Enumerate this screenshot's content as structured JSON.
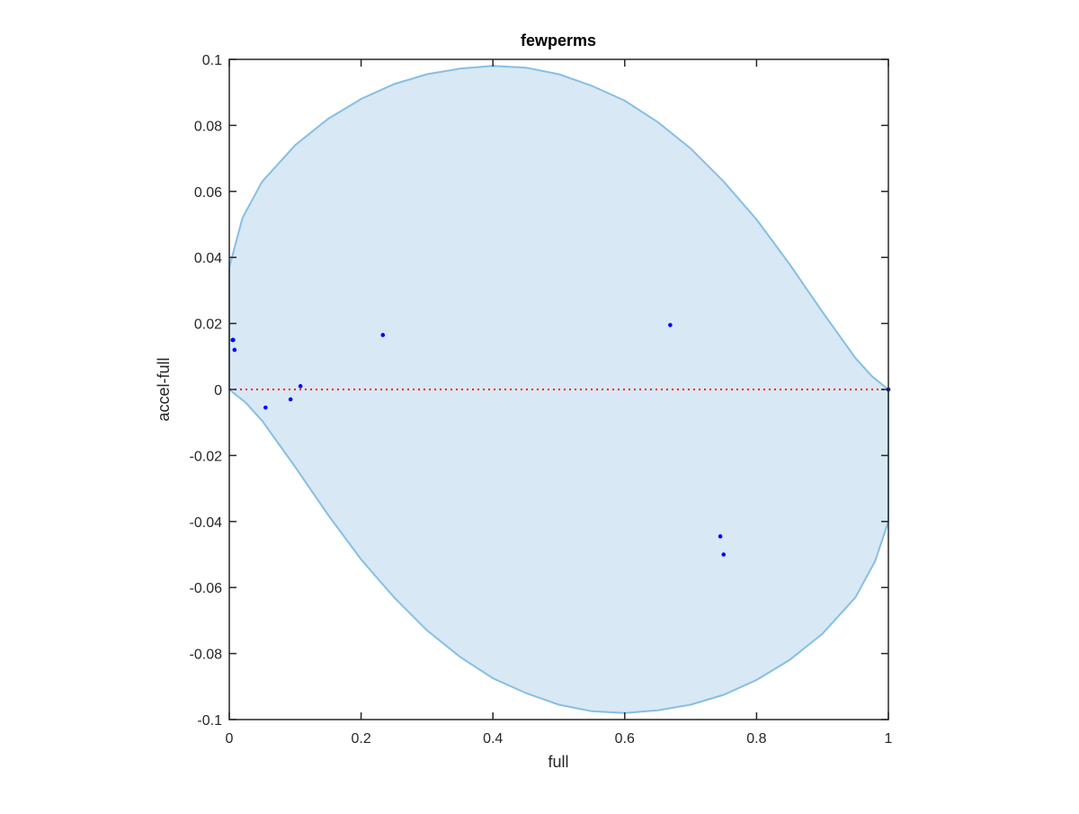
{
  "chart_data": {
    "type": "scatter",
    "title": "fewperms",
    "xlabel": "full",
    "ylabel": "accel-full",
    "xlim": [
      0,
      1
    ],
    "ylim": [
      -0.1,
      0.1
    ],
    "xticks": [
      0,
      0.2,
      0.4,
      0.6,
      0.8,
      1
    ],
    "xtick_labels": [
      "0",
      "0.2",
      "0.4",
      "0.6",
      "0.8",
      "1"
    ],
    "yticks": [
      0.1,
      0.08,
      0.06,
      0.04,
      0.02,
      0,
      -0.02,
      -0.04,
      -0.06,
      -0.08,
      -0.1
    ],
    "ytick_labels": [
      "0.1",
      "0.08",
      "0.06",
      "0.04",
      "0.02",
      "0",
      "-0.02",
      "-0.04",
      "-0.06",
      "-0.08",
      "-0.1"
    ],
    "grid": false,
    "box": true,
    "points": [
      {
        "x": 0.005,
        "y": 0.015
      },
      {
        "x": 0.006,
        "y": 0.015
      },
      {
        "x": 0.008,
        "y": 0.012
      },
      {
        "x": 0.055,
        "y": -0.0055
      },
      {
        "x": 0.093,
        "y": -0.003
      },
      {
        "x": 0.108,
        "y": 0.001
      },
      {
        "x": 0.233,
        "y": 0.0165
      },
      {
        "x": 0.669,
        "y": 0.0195
      },
      {
        "x": 0.745,
        "y": -0.0445
      },
      {
        "x": 0.75,
        "y": -0.05
      },
      {
        "x": 1.0,
        "y": 0.0
      }
    ],
    "reference_line": {
      "y": 0,
      "style": "dotted"
    },
    "region": {
      "top_boundary": [
        [
          0,
          0.037
        ],
        [
          0.02,
          0.052
        ],
        [
          0.05,
          0.063
        ],
        [
          0.1,
          0.074
        ],
        [
          0.15,
          0.082
        ],
        [
          0.2,
          0.088
        ],
        [
          0.25,
          0.0925
        ],
        [
          0.3,
          0.0955
        ],
        [
          0.35,
          0.0972
        ],
        [
          0.4,
          0.098
        ],
        [
          0.45,
          0.0975
        ],
        [
          0.5,
          0.0955
        ],
        [
          0.55,
          0.092
        ],
        [
          0.6,
          0.0875
        ],
        [
          0.65,
          0.081
        ],
        [
          0.7,
          0.073
        ],
        [
          0.75,
          0.063
        ],
        [
          0.8,
          0.0515
        ],
        [
          0.85,
          0.038
        ],
        [
          0.9,
          0.0235
        ],
        [
          0.95,
          0.0095
        ],
        [
          0.975,
          0.004
        ],
        [
          1.0,
          0.0
        ]
      ],
      "bottom_boundary": [
        [
          1.0,
          -0.04
        ],
        [
          0.98,
          -0.052
        ],
        [
          0.95,
          -0.063
        ],
        [
          0.9,
          -0.074
        ],
        [
          0.85,
          -0.082
        ],
        [
          0.8,
          -0.088
        ],
        [
          0.75,
          -0.0925
        ],
        [
          0.7,
          -0.0955
        ],
        [
          0.65,
          -0.0972
        ],
        [
          0.6,
          -0.098
        ],
        [
          0.55,
          -0.0975
        ],
        [
          0.5,
          -0.0955
        ],
        [
          0.45,
          -0.092
        ],
        [
          0.4,
          -0.0875
        ],
        [
          0.35,
          -0.081
        ],
        [
          0.3,
          -0.073
        ],
        [
          0.25,
          -0.063
        ],
        [
          0.2,
          -0.0515
        ],
        [
          0.15,
          -0.038
        ],
        [
          0.1,
          -0.0235
        ],
        [
          0.05,
          -0.0095
        ],
        [
          0.025,
          -0.004
        ],
        [
          0,
          0.0
        ]
      ]
    },
    "colors": {
      "points": "#0000ff",
      "region_fill": "#d8e8f4",
      "region_edge": "#86bfe3",
      "reference_line": "#ff0000",
      "axes": "#262626"
    }
  }
}
